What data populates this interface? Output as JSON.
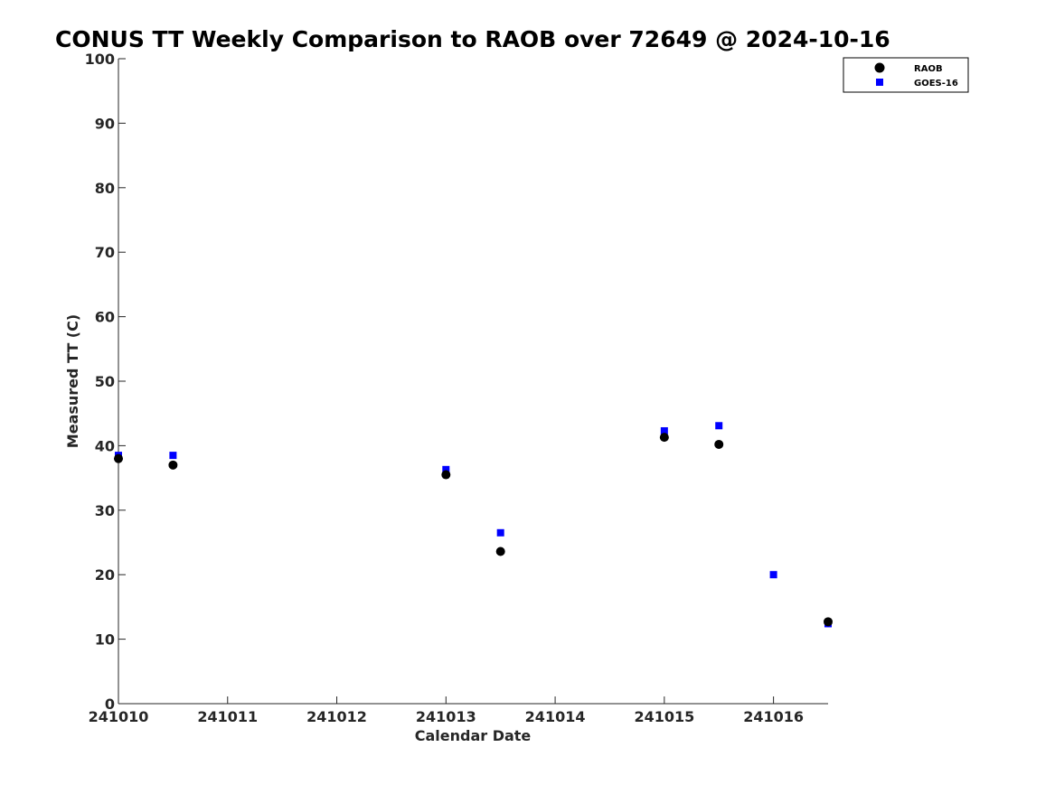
{
  "chart_data": {
    "type": "scatter",
    "title": "CONUS TT Weekly Comparison to RAOB over 72649 @ 2024-10-16",
    "xlabel": "Calendar Date",
    "ylabel": "Measured TT (C)",
    "xlim": [
      "2024-10-10",
      "2024-10-16T12:00"
    ],
    "ylim": [
      0,
      100
    ],
    "x_ticks": [
      "241010",
      "241011",
      "241012",
      "241013",
      "241014",
      "241015",
      "241016"
    ],
    "y_ticks": [
      "0",
      "10",
      "20",
      "30",
      "40",
      "50",
      "60",
      "70",
      "80",
      "90",
      "100"
    ],
    "grid": false,
    "legend_position": "top-right",
    "series": [
      {
        "name": "RAOB",
        "color": "#000000",
        "marker": "circle",
        "points": [
          {
            "x": "2024-10-10T00:00",
            "y": 38.0
          },
          {
            "x": "2024-10-10T12:00",
            "y": 37.0
          },
          {
            "x": "2024-10-13T00:00",
            "y": 35.5
          },
          {
            "x": "2024-10-13T12:00",
            "y": 23.6
          },
          {
            "x": "2024-10-15T00:00",
            "y": 41.3
          },
          {
            "x": "2024-10-15T12:00",
            "y": 40.2
          },
          {
            "x": "2024-10-16T12:00",
            "y": 12.7
          }
        ]
      },
      {
        "name": "GOES-16",
        "color": "#0000ff",
        "marker": "square",
        "points": [
          {
            "x": "2024-10-10T00:00",
            "y": 38.5
          },
          {
            "x": "2024-10-10T12:00",
            "y": 38.5
          },
          {
            "x": "2024-10-13T00:00",
            "y": 36.3
          },
          {
            "x": "2024-10-13T12:00",
            "y": 26.5
          },
          {
            "x": "2024-10-15T00:00",
            "y": 42.3
          },
          {
            "x": "2024-10-15T12:00",
            "y": 43.1
          },
          {
            "x": "2024-10-16T00:00",
            "y": 20.0
          },
          {
            "x": "2024-10-16T12:00",
            "y": 12.4
          }
        ]
      }
    ]
  }
}
